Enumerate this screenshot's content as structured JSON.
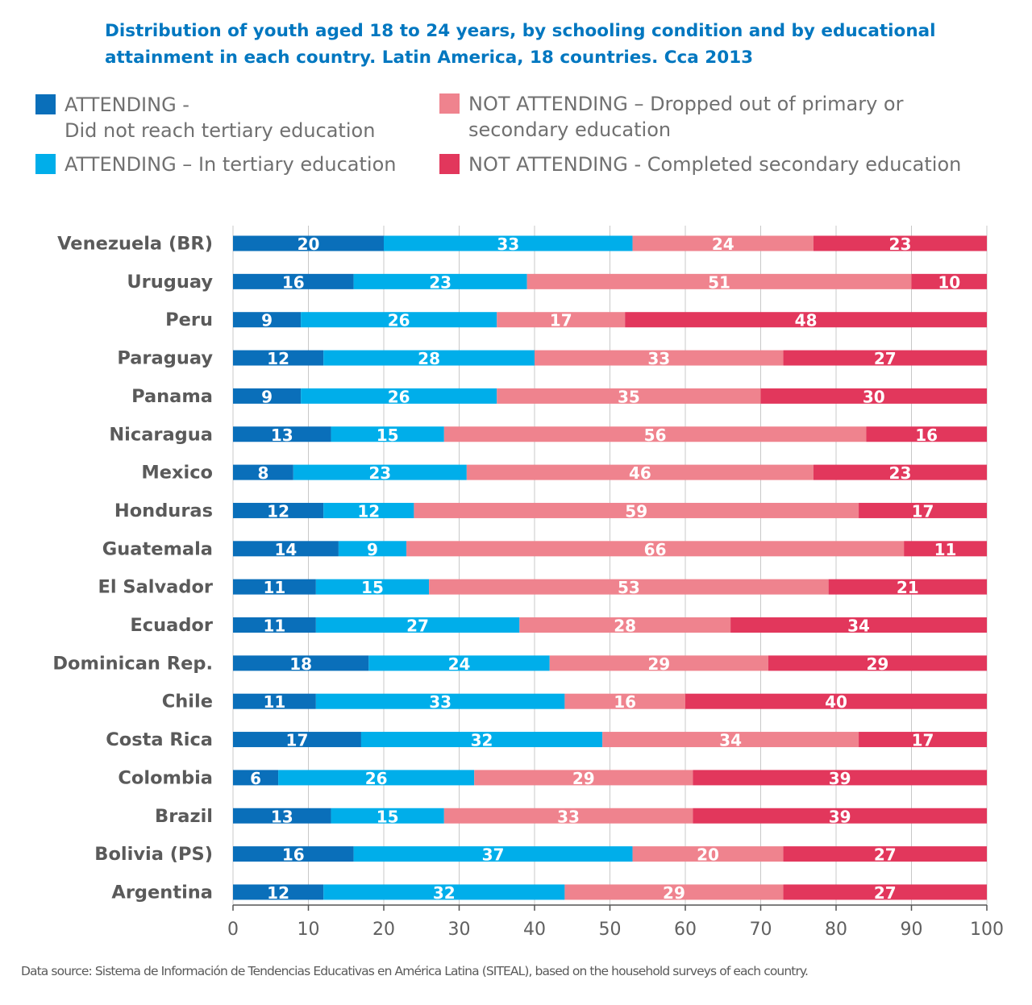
{
  "legend": {
    "items": [
      {
        "label": "ATTENDING -\nDid not reach tertiary education",
        "color": "#0a6fba"
      },
      {
        "label": "ATTENDING – In tertiary education",
        "color": "#00aeea"
      },
      {
        "label": "NOT ATTENDING – Dropped out of primary or\nsecondary education",
        "color": "#ef838e"
      },
      {
        "label": "NOT ATTENDING - Completed secondary education",
        "color": "#e2375c"
      }
    ]
  },
  "source": "Data source: Sistema de Información de Tendencias Educativas en América Latina (SITEAL), based on the household surveys of each country.",
  "chart_data": {
    "type": "bar",
    "orientation": "horizontal",
    "stacked": true,
    "title": "Distribution of youth aged 18 to 24 years, by schooling condition and by educational attainment in each country. Latin America, 18 countries. Cca 2013",
    "categories": [
      "Venezuela (BR)",
      "Uruguay",
      "Peru",
      "Paraguay",
      "Panama",
      "Nicaragua",
      "Mexico",
      "Honduras",
      "Guatemala",
      "El Salvador",
      "Ecuador",
      "Dominican Rep.",
      "Chile",
      "Costa Rica",
      "Colombia",
      "Brazil",
      "Bolivia (PS)",
      "Argentina"
    ],
    "series": [
      {
        "name": "ATTENDING - Did not reach tertiary education",
        "color": "#0a6fba",
        "values": [
          20,
          16,
          9,
          12,
          9,
          13,
          8,
          12,
          14,
          11,
          11,
          18,
          11,
          17,
          6,
          13,
          16,
          12
        ]
      },
      {
        "name": "ATTENDING – In tertiary education",
        "color": "#00aeea",
        "values": [
          33,
          23,
          26,
          28,
          26,
          15,
          23,
          12,
          9,
          15,
          27,
          24,
          33,
          32,
          26,
          15,
          37,
          32
        ]
      },
      {
        "name": "NOT ATTENDING – Dropped out of primary or secondary education",
        "color": "#ef838e",
        "values": [
          24,
          51,
          17,
          33,
          35,
          56,
          46,
          59,
          66,
          53,
          28,
          29,
          16,
          34,
          29,
          33,
          20,
          29
        ]
      },
      {
        "name": "NOT ATTENDING - Completed secondary education",
        "color": "#e2375c",
        "values": [
          23,
          10,
          48,
          27,
          30,
          16,
          23,
          17,
          11,
          21,
          34,
          29,
          40,
          17,
          39,
          39,
          27,
          27
        ]
      }
    ],
    "xlim": [
      0,
      100
    ],
    "xticks": [
      0,
      10,
      20,
      30,
      40,
      50,
      60,
      70,
      80,
      90,
      100
    ],
    "xlabel": "",
    "ylabel": "",
    "grid": true,
    "legend_position": "top"
  }
}
